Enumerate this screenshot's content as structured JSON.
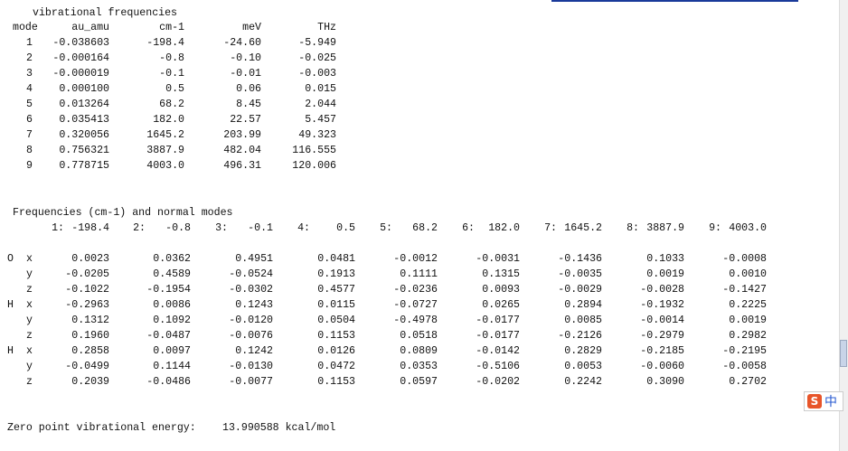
{
  "freq_table": {
    "title": "vibrational frequencies",
    "headers": [
      "mode",
      "au_amu",
      "cm-1",
      "meV",
      "THz"
    ],
    "rows": [
      [
        "1",
        "-0.038603",
        "-198.4",
        "-24.60",
        "-5.949"
      ],
      [
        "2",
        "-0.000164",
        "-0.8",
        "-0.10",
        "-0.025"
      ],
      [
        "3",
        "-0.000019",
        "-0.1",
        "-0.01",
        "-0.003"
      ],
      [
        "4",
        "0.000100",
        "0.5",
        "0.06",
        "0.015"
      ],
      [
        "5",
        "0.013264",
        "68.2",
        "8.45",
        "2.044"
      ],
      [
        "6",
        "0.035413",
        "182.0",
        "22.57",
        "5.457"
      ],
      [
        "7",
        "0.320056",
        "1645.2",
        "203.99",
        "49.323"
      ],
      [
        "8",
        "0.756321",
        "3887.9",
        "482.04",
        "116.555"
      ],
      [
        "9",
        "0.778715",
        "4003.0",
        "496.31",
        "120.006"
      ]
    ]
  },
  "normal_modes": {
    "title": "Frequencies (cm-1) and normal modes",
    "modes": [
      {
        "index": "1:",
        "freq": "-198.4"
      },
      {
        "index": "2:",
        "freq": "-0.8"
      },
      {
        "index": "3:",
        "freq": "-0.1"
      },
      {
        "index": "4:",
        "freq": "0.5"
      },
      {
        "index": "5:",
        "freq": "68.2"
      },
      {
        "index": "6:",
        "freq": "182.0"
      },
      {
        "index": "7:",
        "freq": "1645.2"
      },
      {
        "index": "8:",
        "freq": "3887.9"
      },
      {
        "index": "9:",
        "freq": "4003.0"
      }
    ],
    "rows": [
      {
        "atom": "O",
        "axis": "x",
        "values": [
          "0.0023",
          "0.0362",
          "0.4951",
          "0.0481",
          "-0.0012",
          "-0.0031",
          "-0.1436",
          "0.1033",
          "-0.0008"
        ]
      },
      {
        "atom": null,
        "axis": "y",
        "values": [
          "-0.0205",
          "0.4589",
          "-0.0524",
          "0.1913",
          "0.1111",
          "0.1315",
          "-0.0035",
          "0.0019",
          "0.0010"
        ]
      },
      {
        "atom": null,
        "axis": "z",
        "values": [
          "-0.1022",
          "-0.1954",
          "-0.0302",
          "0.4577",
          "-0.0236",
          "0.0093",
          "-0.0029",
          "-0.0028",
          "-0.1427"
        ]
      },
      {
        "atom": "H",
        "axis": "x",
        "values": [
          "-0.2963",
          "0.0086",
          "0.1243",
          "0.0115",
          "-0.0727",
          "0.0265",
          "0.2894",
          "-0.1932",
          "0.2225"
        ]
      },
      {
        "atom": null,
        "axis": "y",
        "values": [
          "0.1312",
          "0.1092",
          "-0.0120",
          "0.0504",
          "-0.4978",
          "-0.0177",
          "0.0085",
          "-0.0014",
          "0.0019"
        ]
      },
      {
        "atom": null,
        "axis": "z",
        "values": [
          "0.1960",
          "-0.0487",
          "-0.0076",
          "0.1153",
          "0.0518",
          "-0.0177",
          "-0.2126",
          "-0.2979",
          "0.2982"
        ]
      },
      {
        "atom": "H",
        "axis": "x",
        "values": [
          "0.2858",
          "0.0097",
          "0.1242",
          "0.0126",
          "0.0809",
          "-0.0142",
          "0.2829",
          "-0.2185",
          "-0.2195"
        ]
      },
      {
        "atom": null,
        "axis": "y",
        "values": [
          "-0.0499",
          "0.1144",
          "-0.0130",
          "0.0472",
          "0.0353",
          "-0.5106",
          "0.0053",
          "-0.0060",
          "-0.0058"
        ]
      },
      {
        "atom": null,
        "axis": "z",
        "values": [
          "0.2039",
          "-0.0486",
          "-0.0077",
          "0.1153",
          "0.0597",
          "-0.0202",
          "0.2242",
          "0.3090",
          "0.2702"
        ]
      }
    ]
  },
  "zpe": {
    "label": "Zero point vibrational energy:",
    "value": "13.990588 kcal/mol"
  },
  "ime_label": "中"
}
